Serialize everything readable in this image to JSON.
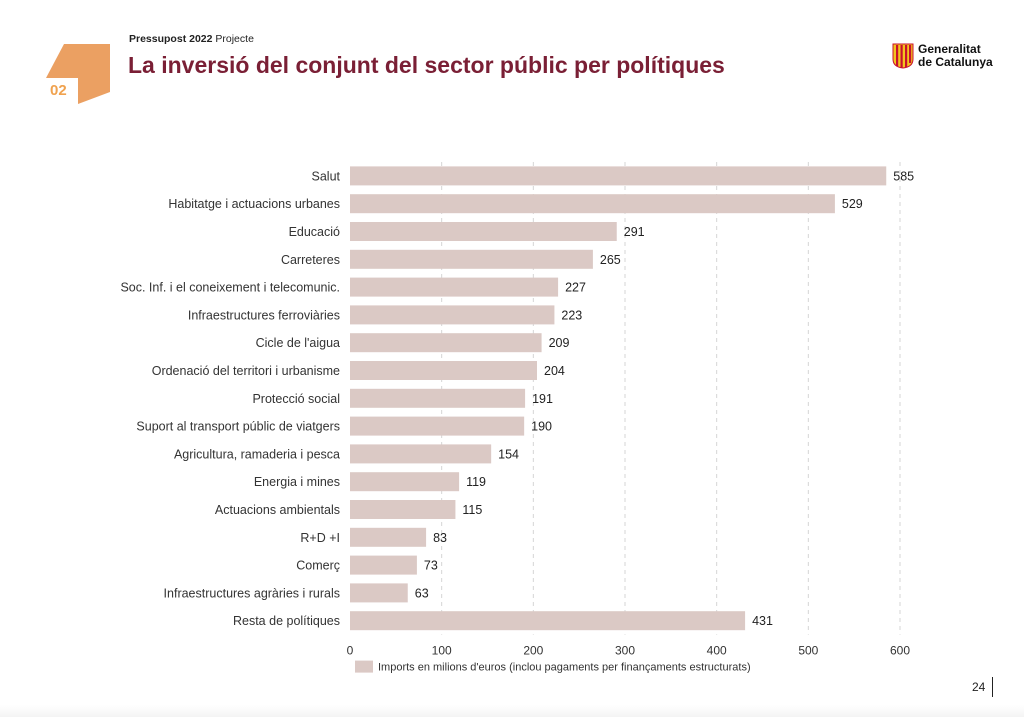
{
  "header": {
    "section_number": "02",
    "subtitle_bold": "Pressupost 2022",
    "subtitle_rest": " Projecte",
    "title": "La inversió del conjunt del sector públic per polítiques"
  },
  "logo": {
    "line1": "Generalitat",
    "line2": "de Catalunya"
  },
  "footer": {
    "page_number": "24"
  },
  "colors": {
    "bar": "#dbc9c5",
    "title": "#7a1f35",
    "badge": "#eba062"
  },
  "chart_data": {
    "type": "bar",
    "orientation": "horizontal",
    "categories": [
      "Salut",
      "Habitatge i actuacions urbanes",
      "Educació",
      "Carreteres",
      "Soc. Inf. i el coneixement i telecomunic.",
      "Infraestructures ferroviàries",
      "Cicle de l'aigua",
      "Ordenació del territori i urbanisme",
      "Protecció social",
      "Suport al transport públic de viatgers",
      "Agricultura, ramaderia i pesca",
      "Energia i mines",
      "Actuacions ambientals",
      "R+D +I",
      "Comerç",
      "Infraestructures agràries i rurals",
      "Resta de polítiques"
    ],
    "values": [
      585,
      529,
      291,
      265,
      227,
      223,
      209,
      204,
      191,
      190,
      154,
      119,
      115,
      83,
      73,
      63,
      431
    ],
    "xlim": [
      0,
      600
    ],
    "xticks": [
      0,
      100,
      200,
      300,
      400,
      500,
      600
    ],
    "grid": "vertical dashed",
    "legend": {
      "position": "bottom",
      "label": "Imports en milions d'euros (inclou pagaments per finançaments estructurats)"
    }
  }
}
